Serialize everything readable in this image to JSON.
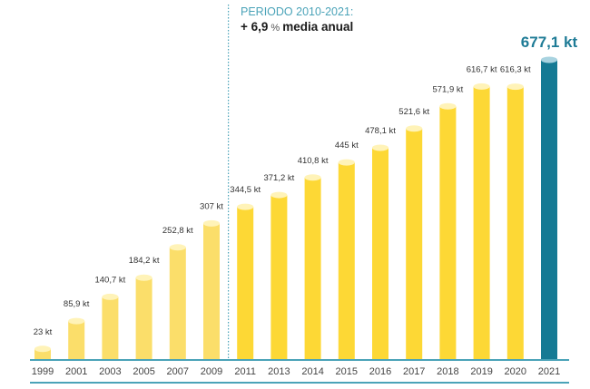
{
  "chart_data": {
    "type": "bar",
    "title": "",
    "xlabel": "",
    "ylabel": "",
    "unit": "kt",
    "ylim": [
      0,
      700
    ],
    "grid": false,
    "categories": [
      "1999",
      "2001",
      "2003",
      "2005",
      "2007",
      "2009",
      "2011",
      "2013",
      "2014",
      "2015",
      "2016",
      "2017",
      "2018",
      "2019",
      "2020",
      "2021"
    ],
    "values": [
      23,
      85.9,
      140.7,
      184.2,
      252.8,
      307,
      344.5,
      371.2,
      410.8,
      445,
      478.1,
      521.6,
      571.9,
      616.7,
      616.3,
      677.1
    ],
    "value_labels": [
      "23 kt",
      "85,9 kt",
      "140,7 kt",
      "184,2 kt",
      "252,8 kt",
      "307 kt",
      "344,5 kt",
      "371,2 kt",
      "410,8 kt",
      "445 kt",
      "478,1 kt",
      "521,6 kt",
      "571,9 kt",
      "616,7 kt",
      "616,3 kt",
      "677,1 kt"
    ],
    "highlight_category": "2021",
    "colors": {
      "early_bar": "#fbde6a",
      "bar": "#fdd835",
      "highlight_bar": "#157a94",
      "axis": "#4aa3b8",
      "divider": "#4aa3b8"
    },
    "early_period_end": "2009",
    "annotation": {
      "title": "PERIODO 2010-2021:",
      "value": "+ 6,9",
      "pct": "%",
      "text": "media anual"
    }
  }
}
